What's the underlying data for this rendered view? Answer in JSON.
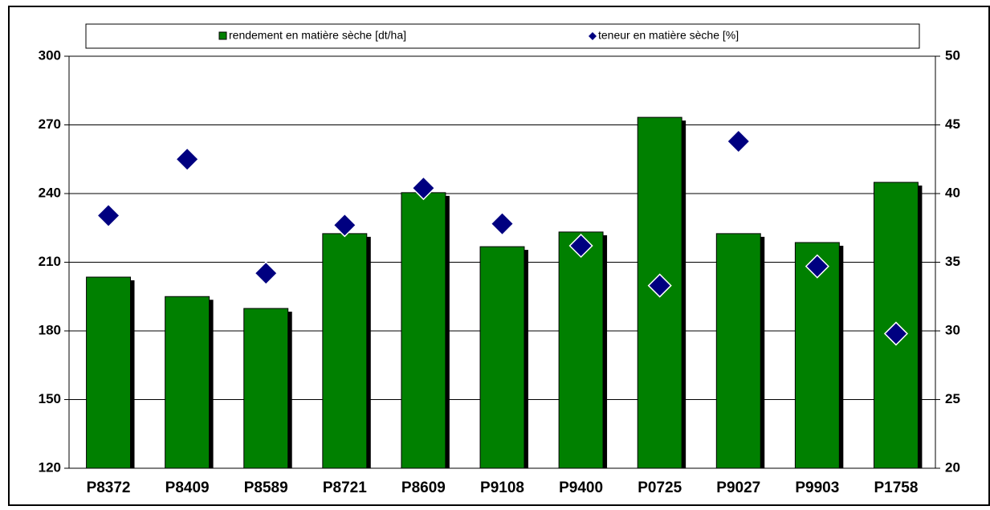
{
  "chart_data": {
    "type": "bar",
    "categories": [
      "P8372",
      "P8409",
      "P8589",
      "P8721",
      "P8609",
      "P9108",
      "P9400",
      "P0725",
      "P9027",
      "P9903",
      "P1758"
    ],
    "series": [
      {
        "name": "rendement en matière sèche [dt/ha]",
        "color": "#008000",
        "type": "bar",
        "values": [
          203.5,
          195,
          189.8,
          222.5,
          240.4,
          216.8,
          223.2,
          273.3,
          222.5,
          218.6,
          244.9
        ]
      },
      {
        "name": "teneur en matière sèche [%]",
        "color": "#000080",
        "type": "scatter",
        "axis": "y2",
        "values": [
          38.4,
          42.5,
          34.2,
          37.7,
          40.4,
          37.8,
          36.2,
          33.3,
          43.8,
          34.7,
          29.8
        ]
      }
    ],
    "ylim": [
      120,
      300
    ],
    "yticks": [
      120,
      150,
      180,
      210,
      240,
      270,
      300
    ],
    "y2lim": [
      20,
      50
    ],
    "y2ticks": [
      20,
      25,
      30,
      35,
      40,
      45,
      50
    ],
    "grid": true,
    "legend": "top"
  }
}
